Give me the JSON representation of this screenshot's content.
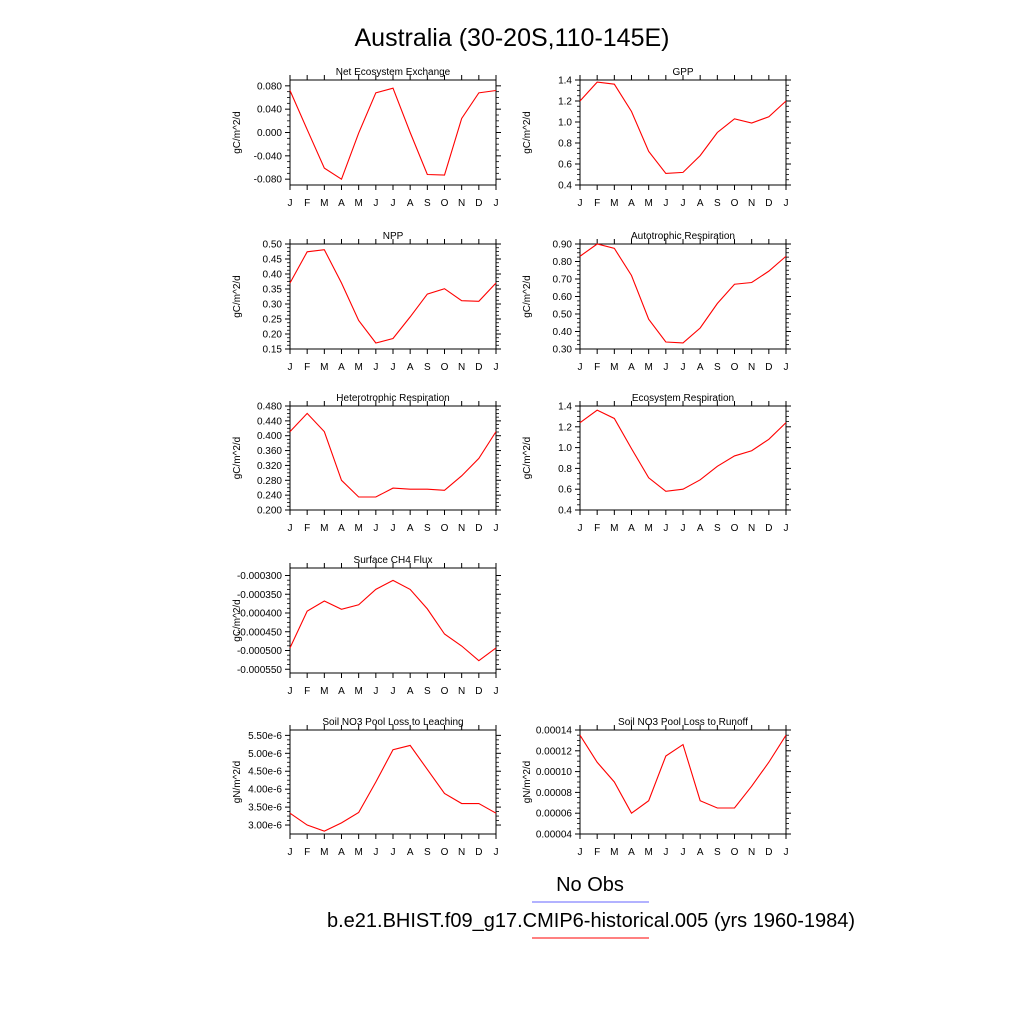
{
  "title": "Australia (30-20S,110-145E)",
  "colors": {
    "model": "#ff0000",
    "obs": "#6666ff",
    "axis": "#000000"
  },
  "legend": {
    "obs_label": "No Obs",
    "model_label": "b.e21.BHIST.f09_g17.CMIP6-historical.005 (yrs 1960-1984)"
  },
  "months": [
    "J",
    "F",
    "M",
    "A",
    "M",
    "J",
    "J",
    "A",
    "S",
    "O",
    "N",
    "D",
    "J"
  ],
  "chart_data": [
    {
      "type": "line",
      "title": "Net Ecosystem Exchange",
      "ylabel": "gC/m^2/d",
      "ylim": [
        -0.09,
        0.09
      ],
      "yticks": [
        -0.08,
        -0.04,
        0.0,
        0.04,
        0.08
      ],
      "yticklabels": [
        "-0.080",
        "-0.040",
        "0.000",
        "0.040",
        "0.080"
      ],
      "x": [
        "J",
        "F",
        "M",
        "A",
        "M",
        "J",
        "J",
        "A",
        "S",
        "O",
        "N",
        "D",
        "J"
      ],
      "series": [
        {
          "values": [
            0.072,
            0.005,
            -0.061,
            -0.08,
            -0.001,
            0.068,
            0.076,
            0.0,
            -0.072,
            -0.073,
            0.024,
            0.068,
            0.072
          ]
        }
      ]
    },
    {
      "type": "line",
      "title": "GPP",
      "ylabel": "gC/m^2/d",
      "ylim": [
        0.4,
        1.4
      ],
      "yticks": [
        0.4,
        0.6,
        0.8,
        1.0,
        1.2,
        1.4
      ],
      "yticklabels": [
        "0.4",
        "0.6",
        "0.8",
        "1.0",
        "1.2",
        "1.4"
      ],
      "x": [
        "J",
        "F",
        "M",
        "A",
        "M",
        "J",
        "J",
        "A",
        "S",
        "O",
        "N",
        "D",
        "J"
      ],
      "series": [
        {
          "values": [
            1.2,
            1.38,
            1.36,
            1.1,
            0.72,
            0.51,
            0.52,
            0.68,
            0.9,
            1.03,
            0.99,
            1.05,
            1.2
          ]
        }
      ]
    },
    {
      "type": "line",
      "title": "NPP",
      "ylabel": "gC/m^2/d",
      "ylim": [
        0.15,
        0.5
      ],
      "yticks": [
        0.15,
        0.2,
        0.25,
        0.3,
        0.35,
        0.4,
        0.45,
        0.5
      ],
      "yticklabels": [
        "0.15",
        "0.20",
        "0.25",
        "0.30",
        "0.35",
        "0.40",
        "0.45",
        "0.50"
      ],
      "x": [
        "J",
        "F",
        "M",
        "A",
        "M",
        "J",
        "J",
        "A",
        "S",
        "O",
        "N",
        "D",
        "J"
      ],
      "series": [
        {
          "values": [
            0.37,
            0.474,
            0.481,
            0.37,
            0.245,
            0.17,
            0.185,
            0.257,
            0.333,
            0.351,
            0.311,
            0.309,
            0.37
          ]
        }
      ]
    },
    {
      "type": "line",
      "title": "Autotrophic Respiration",
      "ylabel": "gC/m^2/d",
      "ylim": [
        0.3,
        0.9
      ],
      "yticks": [
        0.3,
        0.4,
        0.5,
        0.6,
        0.7,
        0.8,
        0.9
      ],
      "yticklabels": [
        "0.30",
        "0.40",
        "0.50",
        "0.60",
        "0.70",
        "0.80",
        "0.90"
      ],
      "x": [
        "J",
        "F",
        "M",
        "A",
        "M",
        "J",
        "J",
        "A",
        "S",
        "O",
        "N",
        "D",
        "J"
      ],
      "series": [
        {
          "values": [
            0.83,
            0.9,
            0.875,
            0.72,
            0.47,
            0.34,
            0.335,
            0.42,
            0.56,
            0.67,
            0.68,
            0.745,
            0.83
          ]
        }
      ]
    },
    {
      "type": "line",
      "title": "Heterotrophic Respiration",
      "ylabel": "gC/m^2/d",
      "ylim": [
        0.2,
        0.48
      ],
      "yticks": [
        0.2,
        0.24,
        0.28,
        0.32,
        0.36,
        0.4,
        0.44,
        0.48
      ],
      "yticklabels": [
        "0.200",
        "0.240",
        "0.280",
        "0.320",
        "0.360",
        "0.400",
        "0.440",
        "0.480"
      ],
      "x": [
        "J",
        "F",
        "M",
        "A",
        "M",
        "J",
        "J",
        "A",
        "S",
        "O",
        "N",
        "D",
        "J"
      ],
      "series": [
        {
          "values": [
            0.411,
            0.46,
            0.411,
            0.28,
            0.235,
            0.235,
            0.259,
            0.256,
            0.256,
            0.253,
            0.292,
            0.339,
            0.411
          ]
        }
      ]
    },
    {
      "type": "line",
      "title": "Ecosystem Respiration",
      "ylabel": "gC/m^2/d",
      "ylim": [
        0.4,
        1.4
      ],
      "yticks": [
        0.4,
        0.6,
        0.8,
        1.0,
        1.2,
        1.4
      ],
      "yticklabels": [
        "0.4",
        "0.6",
        "0.8",
        "1.0",
        "1.2",
        "1.4"
      ],
      "x": [
        "J",
        "F",
        "M",
        "A",
        "M",
        "J",
        "J",
        "A",
        "S",
        "O",
        "N",
        "D",
        "J"
      ],
      "series": [
        {
          "values": [
            1.24,
            1.36,
            1.28,
            0.99,
            0.71,
            0.58,
            0.6,
            0.69,
            0.82,
            0.92,
            0.97,
            1.08,
            1.24
          ]
        }
      ]
    },
    {
      "type": "line",
      "title": "Surface CH4 Flux",
      "ylabel": "gC/m^2/d",
      "ylim": [
        -0.00056,
        -0.00028
      ],
      "yticks": [
        -0.00055,
        -0.0005,
        -0.00045,
        -0.0004,
        -0.00035,
        -0.0003
      ],
      "yticklabels": [
        "-0.000550",
        "-0.000500",
        "-0.000450",
        "-0.000400",
        "-0.000350",
        "-0.000300"
      ],
      "x": [
        "J",
        "F",
        "M",
        "A",
        "M",
        "J",
        "J",
        "A",
        "S",
        "O",
        "N",
        "D",
        "J"
      ],
      "series": [
        {
          "values": [
            -0.000493,
            -0.000395,
            -0.000368,
            -0.00039,
            -0.000378,
            -0.000337,
            -0.000313,
            -0.000337,
            -0.000389,
            -0.000456,
            -0.000488,
            -0.000527,
            -0.000493
          ]
        }
      ]
    },
    {
      "type": "line",
      "title": "Soil NO3 Pool Loss to Leaching",
      "ylabel": "gN/m^2/d",
      "ylim": [
        2.75e-06,
        5.65e-06
      ],
      "yticks": [
        3e-06,
        3.5e-06,
        4e-06,
        4.5e-06,
        5e-06,
        5.5e-06
      ],
      "yticklabels": [
        "3.00e-6",
        "3.50e-6",
        "4.00e-6",
        "4.50e-6",
        "5.00e-6",
        "5.50e-6"
      ],
      "x": [
        "J",
        "F",
        "M",
        "A",
        "M",
        "J",
        "J",
        "A",
        "S",
        "O",
        "N",
        "D",
        "J"
      ],
      "series": [
        {
          "values": [
            3.33e-06,
            3e-06,
            2.83e-06,
            3.06e-06,
            3.35e-06,
            4.2e-06,
            5.1e-06,
            5.22e-06,
            4.55e-06,
            3.88e-06,
            3.6e-06,
            3.6e-06,
            3.33e-06
          ]
        }
      ]
    },
    {
      "type": "line",
      "title": "Soil NO3 Pool Loss to Runoff",
      "ylabel": "gN/m^2/d",
      "ylim": [
        4e-05,
        0.00014
      ],
      "yticks": [
        4e-05,
        6e-05,
        8e-05,
        0.0001,
        0.00012,
        0.00014
      ],
      "yticklabels": [
        "0.00004",
        "0.00006",
        "0.00008",
        "0.00010",
        "0.00012",
        "0.00014"
      ],
      "x": [
        "J",
        "F",
        "M",
        "A",
        "M",
        "J",
        "J",
        "A",
        "S",
        "O",
        "N",
        "D",
        "J"
      ],
      "series": [
        {
          "values": [
            0.000135,
            0.000109,
            9e-05,
            6e-05,
            7.2e-05,
            0.000115,
            0.000126,
            7.2e-05,
            6.5e-05,
            6.5e-05,
            8.6e-05,
            0.000109,
            0.000135
          ]
        }
      ]
    }
  ]
}
